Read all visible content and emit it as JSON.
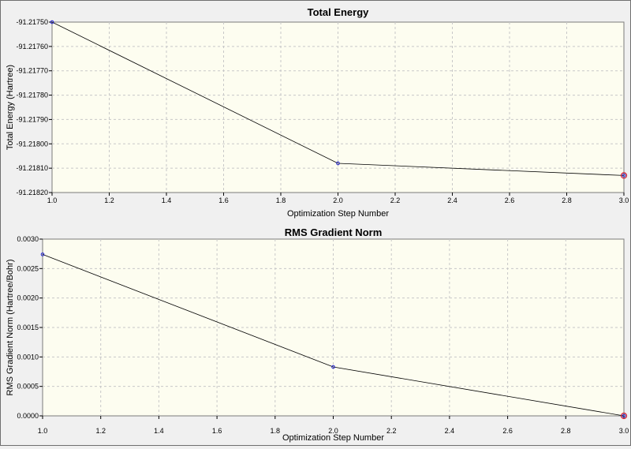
{
  "chart_data": [
    {
      "type": "line",
      "title": "Total Energy",
      "xlabel": "Optimization Step Number",
      "ylabel": "Total Energy (Hartree)",
      "x": [
        1.0,
        2.0,
        3.0
      ],
      "series": [
        {
          "values": [
            -91.2175,
            -91.21808,
            -91.21813
          ]
        }
      ],
      "xlim": [
        1.0,
        3.0
      ],
      "ylim": [
        -91.2182,
        -91.2175
      ],
      "xticks": [
        "1.0",
        "1.2",
        "1.4",
        "1.6",
        "1.8",
        "2.0",
        "2.2",
        "2.4",
        "2.6",
        "2.8",
        "3.0"
      ],
      "yticks": [
        "-91.21750",
        "-91.21760",
        "-91.21770",
        "-91.21780",
        "-91.21790",
        "-91.21800",
        "-91.21810",
        "-91.21820"
      ],
      "grid": true,
      "current_step": 3
    },
    {
      "type": "line",
      "title": "RMS Gradient Norm",
      "xlabel": "Optimization Step Number",
      "ylabel": "RMS Gradient Norm (Hartree/Bohr)",
      "x": [
        1.0,
        2.0,
        3.0
      ],
      "series": [
        {
          "values": [
            0.00274,
            0.00083,
            0.0
          ]
        }
      ],
      "xlim": [
        1.0,
        3.0
      ],
      "ylim": [
        0.0,
        0.003
      ],
      "xticks": [
        "1.0",
        "1.2",
        "1.4",
        "1.6",
        "1.8",
        "2.0",
        "2.2",
        "2.4",
        "2.6",
        "2.8",
        "3.0"
      ],
      "yticks": [
        "0.0030",
        "0.0025",
        "0.0020",
        "0.0015",
        "0.0010",
        "0.0005",
        "0.0000"
      ],
      "grid": true,
      "current_step": 3
    }
  ],
  "colors": {
    "plot_background": "#fdfdf0",
    "line": "#000000",
    "point": "#2020d0",
    "current_point": "#d02030",
    "grid": "#c8c8c8"
  }
}
